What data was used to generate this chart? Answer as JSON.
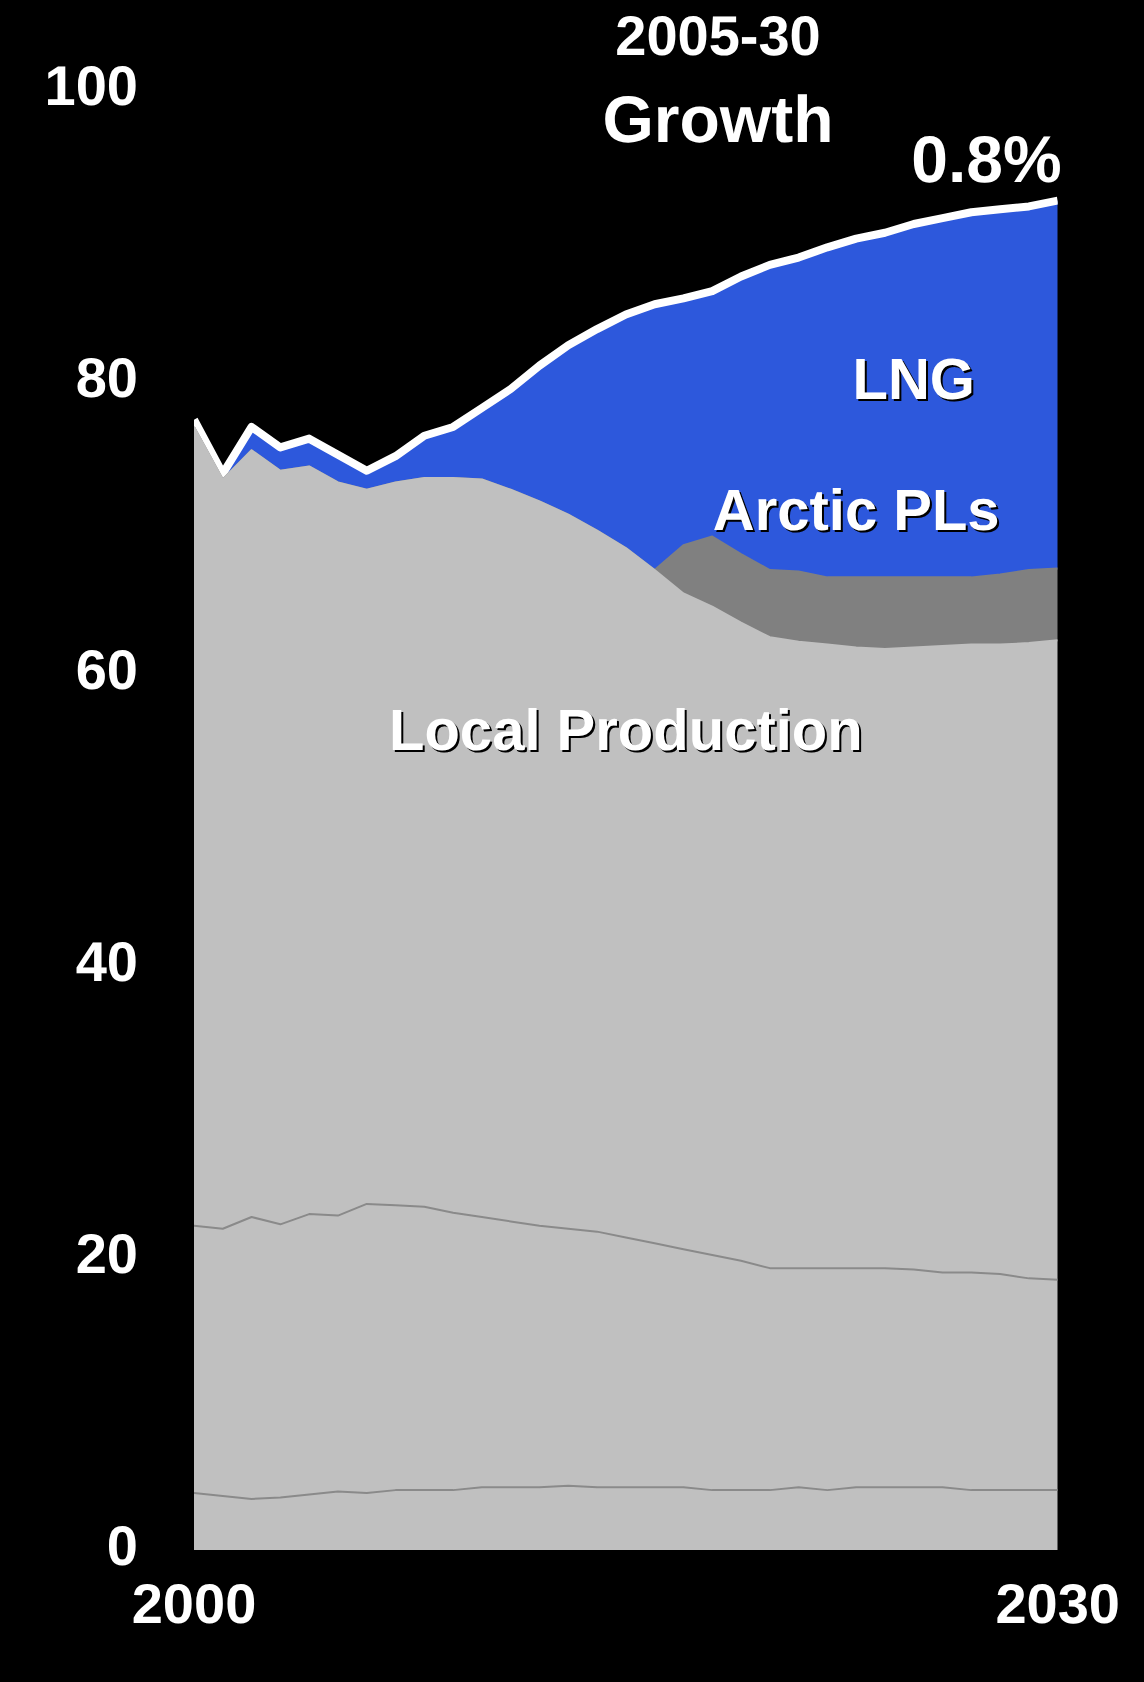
{
  "chart_data": {
    "type": "area",
    "stacked": true,
    "x": [
      2000,
      2001,
      2002,
      2003,
      2004,
      2005,
      2006,
      2007,
      2008,
      2009,
      2010,
      2011,
      2012,
      2013,
      2014,
      2015,
      2016,
      2017,
      2018,
      2019,
      2020,
      2021,
      2022,
      2023,
      2024,
      2025,
      2026,
      2027,
      2028,
      2029,
      2030
    ],
    "xlim": [
      2000,
      2030
    ],
    "xticks": [
      2000,
      2030
    ],
    "ylim": [
      0,
      100
    ],
    "yticks": [
      0,
      20,
      40,
      60,
      80,
      100
    ],
    "grid": false,
    "legend": false,
    "series": [
      {
        "color": "#c0c0c0",
        "values": [
          3.9,
          3.7,
          3.5,
          3.6,
          3.8,
          4.0,
          3.9,
          4.1,
          4.1,
          4.1,
          4.3,
          4.3,
          4.3,
          4.4,
          4.3,
          4.3,
          4.3,
          4.3,
          4.1,
          4.1,
          4.1,
          4.3,
          4.1,
          4.3,
          4.3,
          4.3,
          4.3,
          4.1,
          4.1,
          4.1,
          4.1
        ]
      },
      {
        "color": "#c0c0c0",
        "values": [
          18.3,
          18.3,
          19.3,
          18.7,
          19.2,
          18.9,
          19.8,
          19.5,
          19.4,
          19.0,
          18.5,
          18.2,
          17.9,
          17.6,
          17.5,
          17.1,
          16.7,
          16.3,
          16.1,
          15.7,
          15.2,
          15.0,
          15.2,
          15.0,
          15.0,
          14.9,
          14.7,
          14.9,
          14.8,
          14.5,
          14.4
        ]
      },
      {
        "name": "Local Production",
        "color": "#c0c0c0",
        "values": [
          54.7,
          51.3,
          52.5,
          51.6,
          51.2,
          50.2,
          48.9,
          49.5,
          49.9,
          50.3,
          50.5,
          50.1,
          49.6,
          48.9,
          48.0,
          47.2,
          46.1,
          44.9,
          44.4,
          43.7,
          43.2,
          42.9,
          42.7,
          42.5,
          42.4,
          42.6,
          42.9,
          43.0,
          43.1,
          43.5,
          43.8
        ]
      },
      {
        "name": "Arctic PLs",
        "color": "#808080",
        "values": [
          0,
          0,
          0,
          0,
          0,
          0,
          0,
          0,
          0,
          0,
          0,
          0,
          0,
          0,
          0,
          0,
          0,
          3.3,
          4.8,
          4.7,
          4.6,
          4.8,
          4.6,
          4.8,
          4.9,
          4.8,
          4.7,
          4.6,
          4.8,
          5.0,
          4.9
        ]
      },
      {
        "name": "LNG",
        "color": "#2d58dc",
        "values": [
          0.5,
          0.4,
          1.6,
          1.6,
          1.9,
          1.9,
          1.3,
          1.8,
          2.9,
          3.5,
          4.9,
          6.9,
          9.3,
          11.6,
          13.8,
          16.0,
          18.2,
          16.9,
          16.8,
          19.0,
          20.9,
          21.5,
          22.6,
          23.2,
          23.6,
          24.2,
          24.6,
          25.0,
          25.0,
          24.9,
          25.2
        ]
      }
    ],
    "annotations": [
      "2005-30 Growth",
      {
        "text": "0.8%",
        "x": 2030,
        "y": 92.4
      }
    ]
  }
}
